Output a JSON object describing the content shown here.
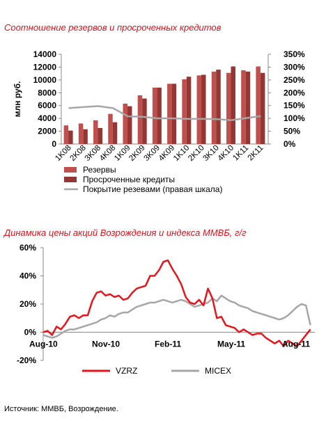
{
  "chart_data": [
    {
      "type": "bar",
      "title": "Соотношение резервов и просроченных кредитов",
      "ylabel": "млн руб.",
      "ylim": [
        0,
        14000
      ],
      "yticks": [
        0,
        2000,
        4000,
        6000,
        8000,
        10000,
        12000,
        14000
      ],
      "y2ticks": [
        "0%",
        "50%",
        "100%",
        "150%",
        "200%",
        "250%",
        "300%",
        "350%"
      ],
      "y2lim": [
        0,
        350
      ],
      "categories": [
        "1K08",
        "2K08",
        "3K08",
        "4K08",
        "1K09",
        "2K09",
        "3K09",
        "4K09",
        "1K10",
        "2K10",
        "3K10",
        "4K10",
        "1K11",
        "2K11"
      ],
      "series": [
        {
          "name": "Резервы",
          "kind": "bar",
          "color": "#c0504d",
          "values": [
            2900,
            3200,
            3700,
            4700,
            6300,
            7600,
            8800,
            9400,
            10100,
            10700,
            11300,
            11100,
            11500,
            12100
          ]
        },
        {
          "name": "Просроченные кредиты",
          "kind": "bar",
          "color": "#943634",
          "values": [
            2100,
            2300,
            2500,
            3400,
            5900,
            7100,
            8800,
            9400,
            10500,
            10800,
            11600,
            12100,
            11300,
            11100
          ]
        },
        {
          "name": "Покрытие резевами (правая шкала)",
          "kind": "line",
          "axis": "right",
          "color": "#a6a6a6",
          "values": [
            140,
            144,
            148,
            140,
            108,
            106,
            100,
            100,
            98,
            98,
            97,
            93,
            101,
            109
          ]
        }
      ]
    },
    {
      "type": "line",
      "title": "Динамика цены акций Возрождения и индекса ММВБ, г/г",
      "ylim": [
        -20,
        60
      ],
      "yticks": [
        "-20%",
        "0%",
        "20%",
        "40%",
        "60%"
      ],
      "xticks": [
        "Aug-10",
        "Nov-10",
        "Feb-11",
        "May-11",
        "Aug-11"
      ],
      "xlim": [
        0,
        12.2
      ],
      "series": [
        {
          "name": "VZRZ",
          "color": "#e8141c",
          "x": [
            0,
            0.2,
            0.4,
            0.6,
            0.8,
            1.0,
            1.2,
            1.4,
            1.6,
            1.8,
            2.0,
            2.2,
            2.4,
            2.6,
            2.8,
            3.0,
            3.2,
            3.4,
            3.6,
            3.8,
            4.0,
            4.2,
            4.4,
            4.6,
            4.8,
            5.0,
            5.2,
            5.4,
            5.6,
            5.8,
            6.0,
            6.2,
            6.4,
            6.6,
            6.8,
            7.0,
            7.2,
            7.4,
            7.6,
            7.8,
            8.0,
            8.2,
            8.4,
            8.6,
            8.8,
            9.0,
            9.2,
            9.4,
            9.6,
            9.8,
            10.0,
            10.2,
            10.4,
            10.6,
            10.8,
            11.0,
            11.2,
            11.4,
            11.6,
            11.8,
            12.0
          ],
          "y": [
            0,
            1,
            -2,
            4,
            2,
            6,
            11,
            12,
            10,
            12,
            12,
            22,
            28,
            29,
            26,
            27,
            25,
            26,
            23,
            24,
            28,
            31,
            32,
            33,
            40,
            40,
            44,
            50,
            51,
            45,
            40,
            34,
            25,
            21,
            20,
            23,
            19,
            31,
            24,
            10,
            11,
            5,
            4,
            3,
            0,
            2,
            0,
            -2,
            -1,
            -1,
            -4,
            -6,
            -8,
            -6,
            -10,
            -6,
            -8,
            -10,
            -6,
            -2,
            2
          ]
        },
        {
          "name": "MICEX",
          "color": "#a6a6a6",
          "x": [
            0,
            0.2,
            0.4,
            0.6,
            0.8,
            1.0,
            1.2,
            1.4,
            1.6,
            1.8,
            2.0,
            2.2,
            2.4,
            2.6,
            2.8,
            3.0,
            3.2,
            3.4,
            3.6,
            3.8,
            4.0,
            4.2,
            4.4,
            4.6,
            4.8,
            5.0,
            5.2,
            5.4,
            5.6,
            5.8,
            6.0,
            6.2,
            6.4,
            6.6,
            6.8,
            7.0,
            7.2,
            7.4,
            7.6,
            7.8,
            8.0,
            8.2,
            8.4,
            8.6,
            8.8,
            9.0,
            9.2,
            9.4,
            9.6,
            9.8,
            10.0,
            10.2,
            10.4,
            10.6,
            10.8,
            11.0,
            11.2,
            11.4,
            11.6,
            11.8,
            12.0
          ],
          "y": [
            -2,
            -3,
            -4,
            -3,
            -1,
            1,
            2,
            2,
            3,
            4,
            5,
            6,
            7,
            9,
            10,
            12,
            11,
            13,
            14,
            14,
            16,
            18,
            19,
            20,
            21,
            21,
            22,
            23,
            22,
            21,
            22,
            23,
            22,
            20,
            18,
            19,
            20,
            21,
            24,
            22,
            26,
            24,
            22,
            21,
            19,
            18,
            17,
            15,
            14,
            13,
            12,
            11,
            10,
            9,
            10,
            12,
            15,
            18,
            20,
            19,
            5
          ]
        }
      ]
    }
  ],
  "source": "Источник: ММВБ, Возрождение."
}
